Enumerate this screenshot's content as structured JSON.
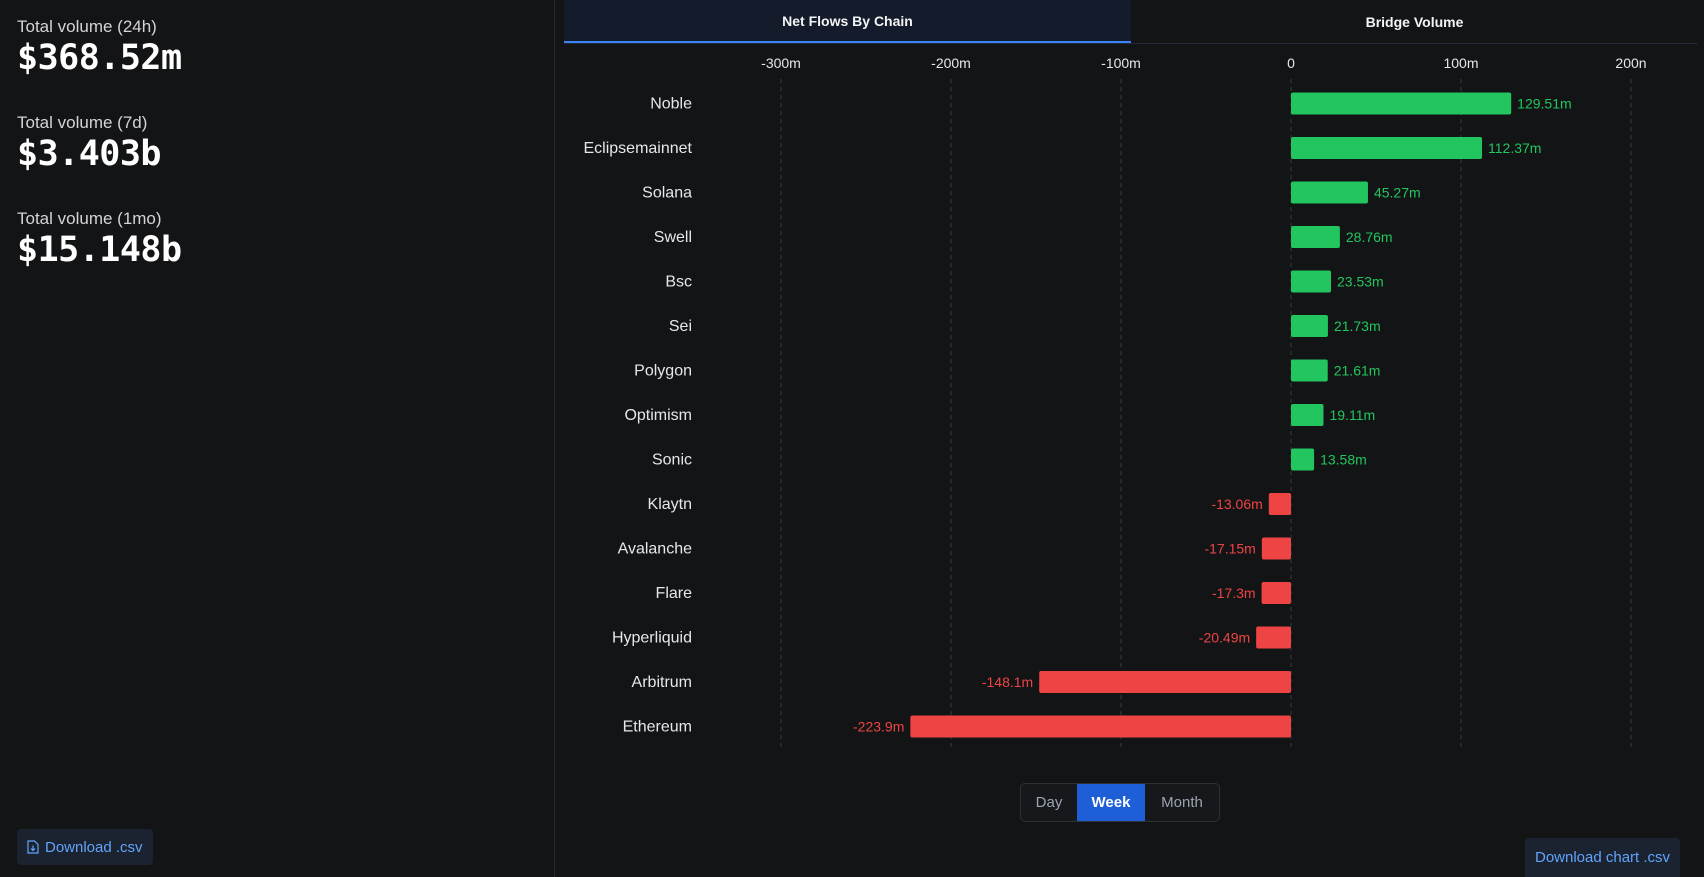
{
  "stats": [
    {
      "label": "Total volume (24h)",
      "value": "$368.52m"
    },
    {
      "label": "Total volume (7d)",
      "value": "$3.403b"
    },
    {
      "label": "Total volume (1mo)",
      "value": "$15.148b"
    }
  ],
  "left_download_label": "Download .csv",
  "tabs": [
    {
      "label": "Net Flows By Chain",
      "active": true
    },
    {
      "label": "Bridge Volume",
      "active": false
    }
  ],
  "period_options": [
    "Day",
    "Week",
    "Month"
  ],
  "period_selected": "Week",
  "download_chart_label": "Download chart .csv",
  "colors": {
    "positive": "#22c55e",
    "negative": "#ef4444",
    "accent": "#3b82f6"
  },
  "chart_data": {
    "type": "bar",
    "orientation": "horizontal",
    "categories": [
      "Noble",
      "Eclipsemainnet",
      "Solana",
      "Swell",
      "Bsc",
      "Sei",
      "Polygon",
      "Optimism",
      "Sonic",
      "Klaytn",
      "Avalanche",
      "Flare",
      "Hyperliquid",
      "Arbitrum",
      "Ethereum"
    ],
    "values": [
      129.51,
      112.37,
      45.27,
      28.76,
      23.53,
      21.73,
      21.61,
      19.11,
      13.58,
      -13.06,
      -17.15,
      -17.3,
      -20.49,
      -148.1,
      -223.9
    ],
    "value_labels": [
      "129.51m",
      "112.37m",
      "45.27m",
      "28.76m",
      "23.53m",
      "21.73m",
      "21.61m",
      "19.11m",
      "13.58m",
      "-13.06m",
      "-17.15m",
      "-17.3m",
      "-20.49m",
      "-148.1m",
      "-223.9m"
    ],
    "x_ticks": [
      -300,
      -200,
      -100,
      0,
      100,
      200
    ],
    "x_tick_labels": [
      "-300m",
      "-200m",
      "-100m",
      "0",
      "100m",
      "200n"
    ],
    "xlim": [
      -300,
      200
    ],
    "grid": true,
    "unit": "m"
  }
}
